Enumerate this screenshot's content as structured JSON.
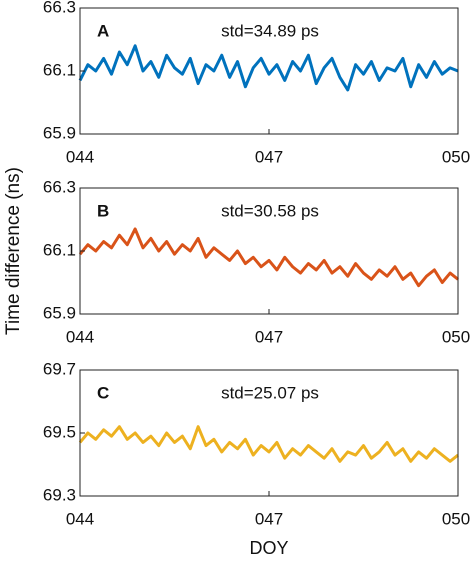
{
  "chart_data": [
    {
      "type": "line",
      "label": "A",
      "annotation": "std=34.89 ps",
      "x": [
        44,
        44.125,
        44.25,
        44.375,
        44.5,
        44.625,
        44.75,
        44.875,
        45,
        45.125,
        45.25,
        45.375,
        45.5,
        45.625,
        45.75,
        45.875,
        46,
        46.125,
        46.25,
        46.375,
        46.5,
        46.625,
        46.75,
        46.875,
        47,
        47.125,
        47.25,
        47.375,
        47.5,
        47.625,
        47.75,
        47.875,
        48,
        48.125,
        48.25,
        48.375,
        48.5,
        48.625,
        48.75,
        48.875,
        49,
        49.125,
        49.25,
        49.375,
        49.5,
        49.625,
        49.75,
        49.875,
        50
      ],
      "series": [
        {
          "color": "#0072bd",
          "values": [
            66.07,
            66.12,
            66.1,
            66.14,
            66.09,
            66.16,
            66.12,
            66.18,
            66.1,
            66.13,
            66.08,
            66.15,
            66.11,
            66.09,
            66.14,
            66.06,
            66.12,
            66.1,
            66.15,
            66.08,
            66.13,
            66.05,
            66.11,
            66.14,
            66.09,
            66.12,
            66.07,
            66.13,
            66.1,
            66.15,
            66.06,
            66.11,
            66.14,
            66.08,
            66.04,
            66.12,
            66.09,
            66.13,
            66.07,
            66.11,
            66.1,
            66.14,
            66.05,
            66.12,
            66.08,
            66.13,
            66.09,
            66.11,
            66.1
          ]
        }
      ],
      "xlim": [
        44,
        50
      ],
      "xticks": [
        {
          "value": 44,
          "label": "044"
        },
        {
          "value": 47,
          "label": "047"
        },
        {
          "value": 50,
          "label": "050"
        }
      ],
      "ylim": [
        65.9,
        66.3
      ],
      "yticks": [
        65.9,
        66.1,
        66.3
      ]
    },
    {
      "type": "line",
      "label": "B",
      "annotation": "std=30.58 ps",
      "ylabel": "Time difference (ns)",
      "x": [
        44,
        44.125,
        44.25,
        44.375,
        44.5,
        44.625,
        44.75,
        44.875,
        45,
        45.125,
        45.25,
        45.375,
        45.5,
        45.625,
        45.75,
        45.875,
        46,
        46.125,
        46.25,
        46.375,
        46.5,
        46.625,
        46.75,
        46.875,
        47,
        47.125,
        47.25,
        47.375,
        47.5,
        47.625,
        47.75,
        47.875,
        48,
        48.125,
        48.25,
        48.375,
        48.5,
        48.625,
        48.75,
        48.875,
        49,
        49.125,
        49.25,
        49.375,
        49.5,
        49.625,
        49.75,
        49.875,
        50
      ],
      "series": [
        {
          "color": "#d95319",
          "values": [
            66.09,
            66.12,
            66.1,
            66.13,
            66.11,
            66.15,
            66.12,
            66.17,
            66.11,
            66.14,
            66.1,
            66.13,
            66.09,
            66.12,
            66.1,
            66.14,
            66.08,
            66.11,
            66.09,
            66.07,
            66.1,
            66.06,
            66.08,
            66.05,
            66.07,
            66.04,
            66.08,
            66.05,
            66.03,
            66.06,
            66.04,
            66.07,
            66.03,
            66.05,
            66.02,
            66.06,
            66.03,
            66.01,
            66.04,
            66.02,
            66.05,
            66.01,
            66.03,
            65.99,
            66.02,
            66.04,
            66.0,
            66.03,
            66.01
          ]
        }
      ],
      "xlim": [
        44,
        50
      ],
      "xticks": [
        {
          "value": 44,
          "label": "044"
        },
        {
          "value": 47,
          "label": "047"
        },
        {
          "value": 50,
          "label": "050"
        }
      ],
      "ylim": [
        65.9,
        66.3
      ],
      "yticks": [
        65.9,
        66.1,
        66.3
      ]
    },
    {
      "type": "line",
      "label": "C",
      "annotation": "std=25.07 ps",
      "xlabel": "DOY",
      "x": [
        44,
        44.125,
        44.25,
        44.375,
        44.5,
        44.625,
        44.75,
        44.875,
        45,
        45.125,
        45.25,
        45.375,
        45.5,
        45.625,
        45.75,
        45.875,
        46,
        46.125,
        46.25,
        46.375,
        46.5,
        46.625,
        46.75,
        46.875,
        47,
        47.125,
        47.25,
        47.375,
        47.5,
        47.625,
        47.75,
        47.875,
        48,
        48.125,
        48.25,
        48.375,
        48.5,
        48.625,
        48.75,
        48.875,
        49,
        49.125,
        49.25,
        49.375,
        49.5,
        49.625,
        49.75,
        49.875,
        50
      ],
      "series": [
        {
          "color": "#edb120",
          "values": [
            69.47,
            69.5,
            69.48,
            69.51,
            69.49,
            69.52,
            69.48,
            69.5,
            69.47,
            69.49,
            69.46,
            69.5,
            69.47,
            69.49,
            69.45,
            69.52,
            69.46,
            69.48,
            69.44,
            69.47,
            69.45,
            69.48,
            69.43,
            69.46,
            69.44,
            69.47,
            69.42,
            69.45,
            69.43,
            69.46,
            69.44,
            69.42,
            69.45,
            69.41,
            69.44,
            69.43,
            69.46,
            69.42,
            69.44,
            69.47,
            69.43,
            69.45,
            69.41,
            69.44,
            69.42,
            69.45,
            69.43,
            69.41,
            69.43
          ]
        }
      ],
      "xlim": [
        44,
        50
      ],
      "xticks": [
        {
          "value": 44,
          "label": "044"
        },
        {
          "value": 47,
          "label": "047"
        },
        {
          "value": 50,
          "label": "050"
        }
      ],
      "ylim": [
        69.3,
        69.7
      ],
      "yticks": [
        69.3,
        69.5,
        69.7
      ]
    }
  ]
}
